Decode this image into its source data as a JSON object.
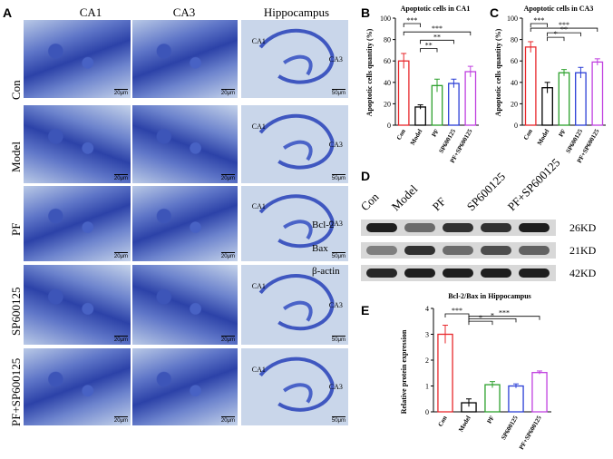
{
  "panel_letters": {
    "a": "A",
    "b": "B",
    "c": "C",
    "d": "D",
    "e": "E"
  },
  "panel_a": {
    "columns": [
      "CA1",
      "CA3",
      "Hippocampus"
    ],
    "rows": [
      "Con",
      "Model",
      "PF",
      "SP600125",
      "PF+SP600125"
    ],
    "scale_small": "20μm",
    "scale_large": "50μm",
    "region_ca1": "CA1",
    "region_ca3": "CA3"
  },
  "panel_d": {
    "lanes": [
      "Con",
      "Model",
      "PF",
      "SP600125",
      "PF+SP600125"
    ],
    "bands": [
      {
        "label": "Bcl-2",
        "kd": "26KD"
      },
      {
        "label": "Bax",
        "kd": "21KD"
      },
      {
        "label": "β-actin",
        "kd": "42KD"
      }
    ]
  },
  "chart_data": [
    {
      "type": "bar",
      "title": "Apoptotic cells in CA1",
      "ylabel": "Apoptotic cells quantity (%)",
      "ylim": [
        0,
        100
      ],
      "yticks": [
        "0",
        "20",
        "40",
        "60",
        "80",
        "100"
      ],
      "categories": [
        "Con",
        "Model",
        "PF",
        "SP600125",
        "PF+SP600125"
      ],
      "values": [
        60,
        17,
        37,
        39,
        50
      ],
      "errors": [
        7,
        2,
        6,
        4,
        5
      ],
      "colors": [
        "#e8272b",
        "#000000",
        "#2ca02c",
        "#2b3fd6",
        "#c040e0"
      ],
      "significance": [
        {
          "from": 0,
          "to": 1,
          "label": "***"
        },
        {
          "from": 0,
          "to": 4,
          "label": "***"
        },
        {
          "from": 1,
          "to": 3,
          "label": "**"
        },
        {
          "from": 1,
          "to": 2,
          "label": "**"
        }
      ]
    },
    {
      "type": "bar",
      "title": "Apoptotic cells in CA3",
      "ylabel": "Apoptotic cells quantity (%)",
      "ylim": [
        0,
        100
      ],
      "yticks": [
        "0",
        "20",
        "40",
        "60",
        "80",
        "100"
      ],
      "categories": [
        "Con",
        "Model",
        "PF",
        "SP600125",
        "PF+SP600125"
      ],
      "values": [
        73,
        35,
        49,
        49,
        59
      ],
      "errors": [
        5,
        5,
        3,
        5,
        3
      ],
      "colors": [
        "#e8272b",
        "#000000",
        "#2ca02c",
        "#2b3fd6",
        "#c040e0"
      ],
      "significance": [
        {
          "from": 0,
          "to": 1,
          "label": "***"
        },
        {
          "from": 0,
          "to": 4,
          "label": "***"
        },
        {
          "from": 1,
          "to": 3,
          "label": "**"
        },
        {
          "from": 1,
          "to": 2,
          "label": "*"
        }
      ]
    },
    {
      "type": "bar",
      "title": "Bcl-2/Bax in Hippocampus",
      "ylabel": "Relative protein expression",
      "ylim": [
        0,
        4
      ],
      "yticks": [
        "0",
        "1",
        "2",
        "3",
        "4"
      ],
      "categories": [
        "Con",
        "Model",
        "PF",
        "SP600125",
        "PF+SP600125"
      ],
      "values": [
        3.0,
        0.35,
        1.05,
        1.0,
        1.52
      ],
      "errors": [
        0.35,
        0.15,
        0.12,
        0.08,
        0.06
      ],
      "colors": [
        "#e8272b",
        "#000000",
        "#2ca02c",
        "#2b3fd6",
        "#c040e0"
      ],
      "significance": [
        {
          "from": 0,
          "to": 1,
          "label": "***"
        },
        {
          "from": 1,
          "to": 4,
          "label": "***"
        },
        {
          "from": 1,
          "to": 3,
          "label": "*"
        },
        {
          "from": 1,
          "to": 2,
          "label": "*"
        }
      ]
    }
  ]
}
